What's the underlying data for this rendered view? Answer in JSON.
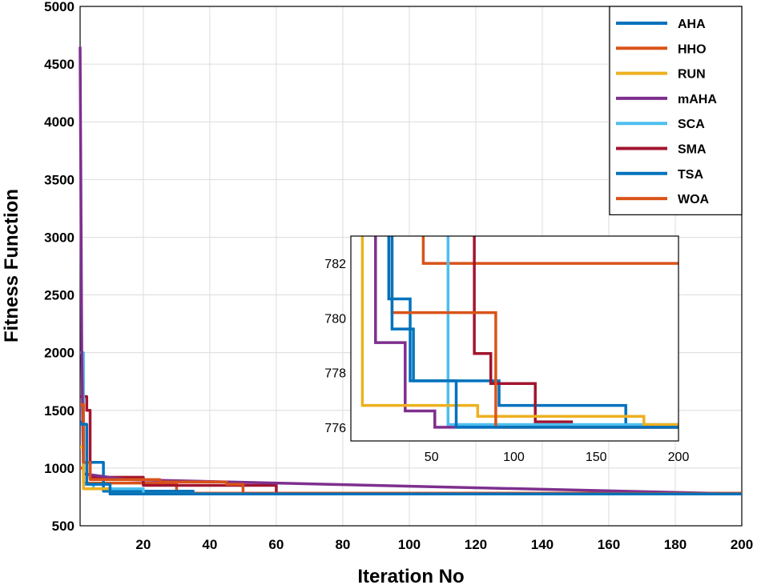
{
  "chart_data": [
    {
      "type": "line",
      "title": "",
      "xlabel": "Iteration No",
      "ylabel": "Fitness Function",
      "xlim": [
        1,
        200
      ],
      "ylim": [
        500,
        5000
      ],
      "xticks": [
        20,
        40,
        60,
        80,
        100,
        120,
        140,
        160,
        180,
        200
      ],
      "yticks": [
        500,
        1000,
        1500,
        2000,
        2500,
        3000,
        3500,
        4000,
        4500,
        5000
      ],
      "grid": true,
      "legend_position": "top-right",
      "series": [
        {
          "name": "AHA",
          "color": "#0072BD",
          "x": [
            1,
            3,
            3,
            10,
            10,
            200
          ],
          "y": [
            1380,
            1380,
            860,
            860,
            776,
            776
          ]
        },
        {
          "name": "HHO",
          "color": "#D95319",
          "x": [
            1,
            2,
            2,
            4,
            4,
            25,
            25,
            45,
            45,
            50,
            50,
            200
          ],
          "y": [
            1550,
            1550,
            1050,
            1050,
            900,
            900,
            880,
            880,
            860,
            860,
            780.2,
            780.2
          ]
        },
        {
          "name": "RUN",
          "color": "#EDB120",
          "x": [
            1,
            2,
            2,
            10,
            10,
            200
          ],
          "y": [
            1180,
            1180,
            820,
            820,
            776.8,
            776.8
          ]
        },
        {
          "name": "mAHA",
          "color": "#7E2F8E",
          "x": [
            1,
            1.5,
            2,
            2,
            15,
            15,
            200
          ],
          "y": [
            4650,
            2000,
            950,
            950,
            900,
            900,
            776
          ]
        },
        {
          "name": "SCA",
          "color": "#4DBEEE",
          "x": [
            1,
            2,
            2,
            5,
            5,
            20,
            20,
            200
          ],
          "y": [
            2000,
            2000,
            860,
            860,
            820,
            820,
            776,
            776
          ]
        },
        {
          "name": "SMA",
          "color": "#A2142F",
          "x": [
            1,
            3,
            3,
            4,
            4,
            20,
            20,
            60,
            60,
            200
          ],
          "y": [
            1620,
            1620,
            1500,
            1500,
            920,
            920,
            850,
            850,
            778.7,
            778.7
          ]
        },
        {
          "name": "TSA",
          "color": "#0072BD",
          "x": [
            1,
            2,
            2,
            4,
            4,
            8,
            8,
            35,
            35,
            200
          ],
          "y": [
            1400,
            1400,
            1050,
            1050,
            1050,
            1050,
            800,
            800,
            776.8,
            776.8
          ]
        },
        {
          "name": "WOA",
          "color": "#D95319",
          "x": [
            1,
            2,
            2,
            30,
            30,
            200
          ],
          "y": [
            1000,
            1000,
            870,
            870,
            782,
            782
          ]
        }
      ]
    },
    {
      "type": "line",
      "title": "",
      "xlabel": "",
      "ylabel": "",
      "xlim": [
        1,
        200
      ],
      "ylim": [
        775.5,
        783
      ],
      "xticks": [
        50,
        100,
        150,
        200
      ],
      "yticks": [
        776,
        778,
        780,
        782
      ],
      "grid": false,
      "series": [
        {
          "name": "AHA",
          "color": "#0072BD",
          "x": [
            26,
            26,
            39,
            39,
            65,
            65,
            200
          ],
          "y": [
            783,
            779.6,
            779.6,
            777.7,
            777.7,
            776,
            776
          ]
        },
        {
          "name": "HHO",
          "color": "#D95319",
          "x": [
            26,
            26,
            89,
            89,
            200
          ],
          "y": [
            783,
            780.2,
            780.2,
            776,
            776
          ]
        },
        {
          "name": "RUN",
          "color": "#EDB120",
          "x": [
            8,
            8,
            78,
            78,
            179,
            179,
            200
          ],
          "y": [
            783,
            776.8,
            776.8,
            776.4,
            776.4,
            776.1,
            776.1
          ]
        },
        {
          "name": "mAHA",
          "color": "#7E2F8E",
          "x": [
            16,
            16,
            34,
            34,
            52,
            52,
            200
          ],
          "y": [
            783,
            779.1,
            779.1,
            776.6,
            776.6,
            776,
            776
          ]
        },
        {
          "name": "SCA",
          "color": "#4DBEEE",
          "x": [
            60,
            60,
            200
          ],
          "y": [
            783,
            776.1,
            776.1
          ]
        },
        {
          "name": "SMA",
          "color": "#A2142F",
          "x": [
            76,
            76,
            86,
            86,
            113,
            113,
            135,
            135,
            200
          ],
          "y": [
            783,
            778.7,
            778.7,
            777.6,
            777.6,
            776.2,
            776.2,
            776,
            776
          ]
        },
        {
          "name": "TSA",
          "color": "#0072BD",
          "x": [
            24,
            24,
            37,
            37,
            91,
            91,
            168,
            168,
            200
          ],
          "y": [
            783,
            780.7,
            780.7,
            777.7,
            777.7,
            776.8,
            776.8,
            776,
            776
          ]
        },
        {
          "name": "WOA",
          "color": "#D95319",
          "x": [
            45,
            45,
            200
          ],
          "y": [
            783,
            782,
            782
          ]
        }
      ]
    }
  ]
}
